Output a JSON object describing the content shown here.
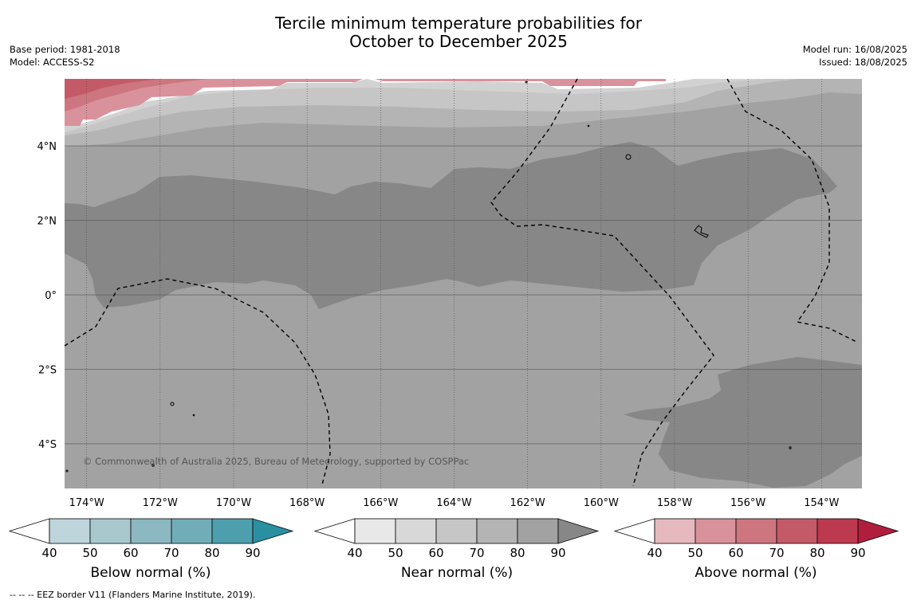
{
  "title_line1": "Tercile minimum temperature probabilities for",
  "title_line2": "October to December 2025",
  "base_period": "Base period: 1981-2018",
  "model": "Model: ACCESS-S2",
  "model_run": "Model run: 16/08/2025",
  "issued": "Issued: 18/08/2025",
  "copyright": "© Commonwealth of Australia 2025, Bureau of Meteorology, supported by COSPPac",
  "footnote": "--  --  -- EEZ border V11 (Flanders Marine Institute, 2019).",
  "map": {
    "lon_range": [
      -174.6,
      -152.9
    ],
    "lat_range": [
      -5.2,
      5.8
    ],
    "x_ticks": [
      "174°W",
      "172°W",
      "170°W",
      "168°W",
      "166°W",
      "164°W",
      "162°W",
      "160°W",
      "158°W",
      "156°W",
      "154°W"
    ],
    "x_tick_values": [
      -174,
      -172,
      -170,
      -168,
      -166,
      -164,
      -162,
      -160,
      -158,
      -156,
      -154
    ],
    "y_ticks": [
      "4°N",
      "2°N",
      "0°",
      "2°S",
      "4°S"
    ],
    "y_tick_values": [
      4,
      2,
      0,
      -2,
      -4
    ],
    "grid": true,
    "ocean_color": "#a2a2a2"
  },
  "colorbars": [
    {
      "label": "Below normal (%)",
      "ticks": [
        "40",
        "50",
        "60",
        "70",
        "80",
        "90"
      ],
      "colors": [
        "#ffffff",
        "#bed5db",
        "#a8c8cd",
        "#8cb8c2",
        "#71adb9",
        "#4e9fad",
        "#2b8fa2"
      ]
    },
    {
      "label": "Near normal (%)",
      "ticks": [
        "40",
        "50",
        "60",
        "70",
        "80",
        "90"
      ],
      "colors": [
        "#ffffff",
        "#e8e8e8",
        "#d8d8d8",
        "#c6c6c6",
        "#b4b4b4",
        "#a2a2a2",
        "#878787"
      ]
    },
    {
      "label": "Above normal (%)",
      "ticks": [
        "40",
        "50",
        "60",
        "70",
        "80",
        "90"
      ],
      "colors": [
        "#ffffff",
        "#e6b9bf",
        "#d9929b",
        "#cd7680",
        "#c45a68",
        "#bd3950",
        "#b01e3c"
      ]
    }
  ]
}
